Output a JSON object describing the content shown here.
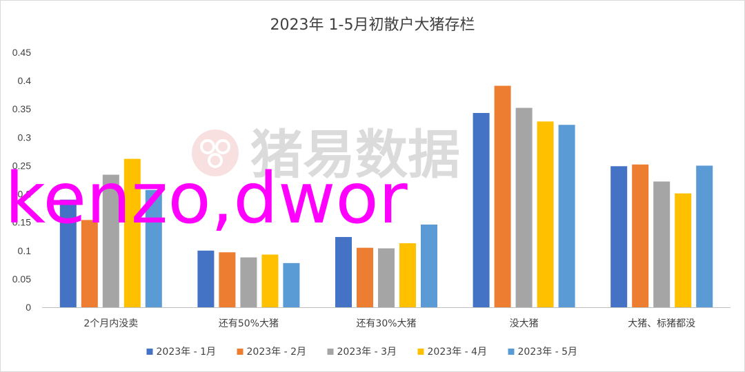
{
  "chart_data": {
    "type": "bar",
    "title": "2023年 1-5月初散户大猪存栏",
    "xlabel": "",
    "ylabel": "",
    "categories": [
      "2个月内没卖",
      "还有50%大猪",
      "还有30%大猪",
      "没大猪",
      "大猪、标猪都没"
    ],
    "series": [
      {
        "name": "2023年 - 1月",
        "color": "#4472c4",
        "values": [
          0.19,
          0.1,
          0.124,
          0.343,
          0.249
        ]
      },
      {
        "name": "2023年 - 2月",
        "color": "#ed7d31",
        "values": [
          0.154,
          0.097,
          0.105,
          0.391,
          0.252
        ]
      },
      {
        "name": "2023年 - 3月",
        "color": "#a5a5a5",
        "values": [
          0.234,
          0.088,
          0.104,
          0.352,
          0.222
        ]
      },
      {
        "name": "2023年 - 4月",
        "color": "#ffc000",
        "values": [
          0.262,
          0.093,
          0.113,
          0.328,
          0.201
        ]
      },
      {
        "name": "2023年 - 5月",
        "color": "#5b9bd5",
        "values": [
          0.207,
          0.078,
          0.146,
          0.322,
          0.25
        ]
      }
    ],
    "ylim": [
      0,
      0.45
    ],
    "yticks": [
      "0",
      "0.05",
      "0.1",
      "0.15",
      "0.2",
      "0.25",
      "0.3",
      "0.35",
      "0.4",
      "0.45"
    ],
    "grid": false,
    "legend_position": "bottom"
  },
  "watermark": {
    "text": "猪易数据",
    "color": "#e8a0a0"
  },
  "overlay": {
    "text": "kenzo,dwor",
    "color": "#ff00ff"
  }
}
